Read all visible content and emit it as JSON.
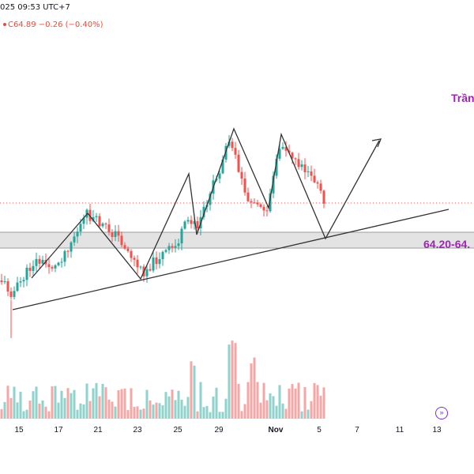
{
  "header": {
    "datetime": "025 09:53 UTC+7",
    "ohlc": "C64.89  −0.26 (−0.40%)"
  },
  "annotations": {
    "title": "Trần",
    "zone_label": "64.20-64."
  },
  "icons": {
    "replay": "fast-forward-icon"
  },
  "colors": {
    "up": "#26a69a",
    "down": "#ef5350",
    "accent": "#9c27b0",
    "zone_fill": "#d9d9d9",
    "volume_up": "#8fd3cc",
    "volume_down": "#f4a7a5"
  },
  "chart_data": {
    "type": "candlestick",
    "price_scale_visible": false,
    "last_price": 64.89,
    "x_tick_labels": [
      "15",
      "17",
      "21",
      "23",
      "25",
      "29",
      "Nov",
      "5",
      "7",
      "11",
      "13"
    ],
    "support_zone": {
      "label": "64.20-64.",
      "low": 64.2
    },
    "trendline": "rising support line under the swing lows",
    "pattern_path": "zigzag swing projection: rally, pullback to support zone, breakout higher",
    "volume": "vertical bars under the price pane, colored by candle direction"
  }
}
